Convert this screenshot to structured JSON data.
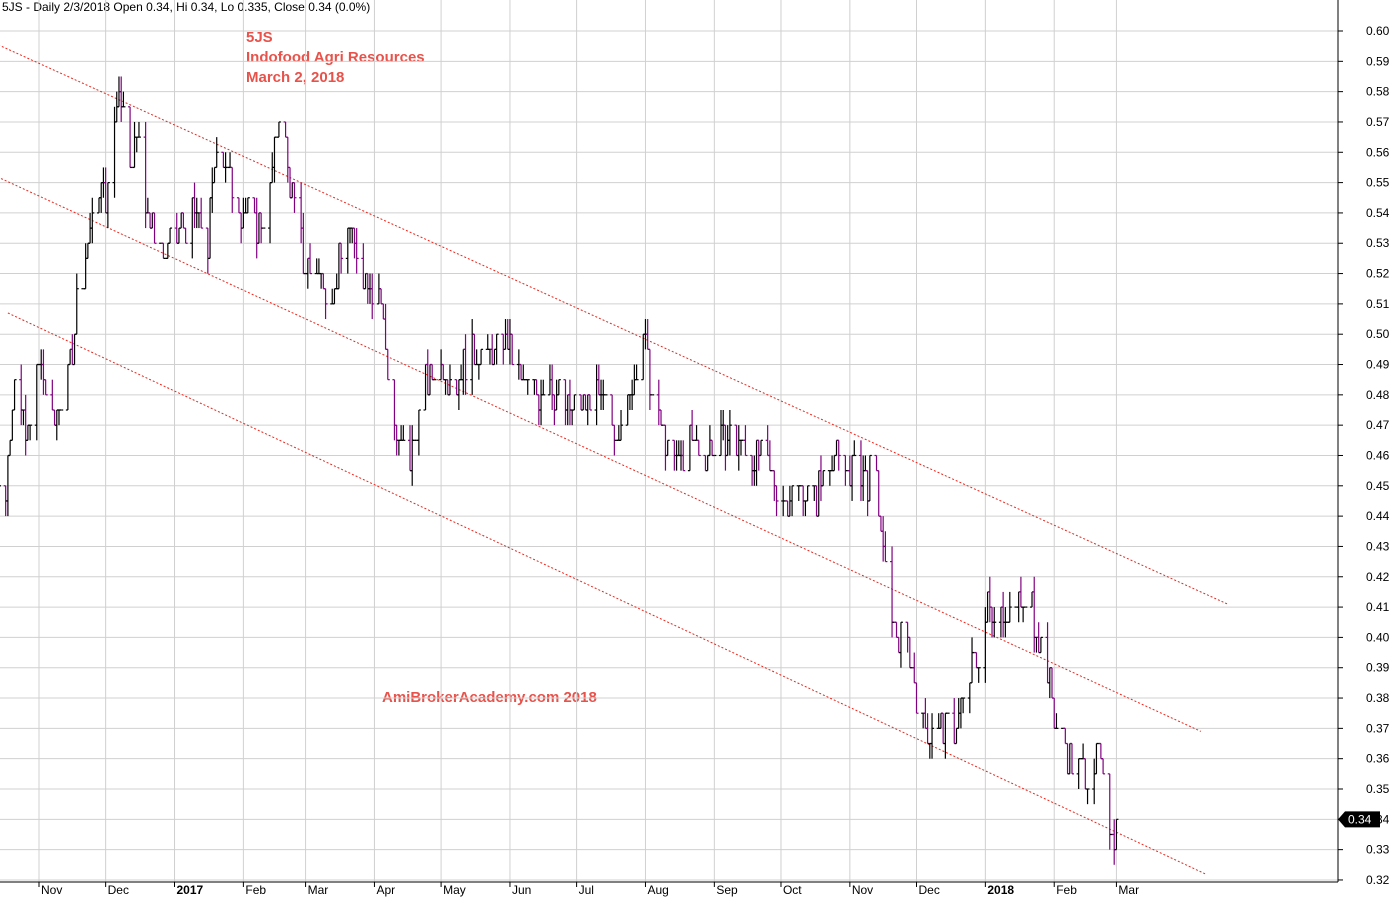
{
  "header": {
    "text": "5JS - Daily 2/3/2018 Open 0.34, Hi 0.34, Lo 0.335, Close 0.34 (0.0%)"
  },
  "title_lines": [
    "5JS",
    "Indofood Agri Resources",
    "March 2, 2018"
  ],
  "watermark": "AmiBrokerAcademy.com  2018",
  "colors": {
    "up": "#000000",
    "down": "#800080",
    "trendline": "#e8261c",
    "grid": "#d0d0d0",
    "text_red": "#e8524a"
  },
  "chart_data": {
    "type": "bar",
    "style": "ohlc",
    "grid": true,
    "ylim": [
      0.32,
      0.6
    ],
    "y_ticks": [
      "0.32",
      "0.33",
      "0.34",
      "0.35",
      "0.36",
      "0.37",
      "0.38",
      "0.39",
      "0.40",
      "0.41",
      "0.42",
      "0.43",
      "0.44",
      "0.45",
      "0.46",
      "0.47",
      "0.48",
      "0.49",
      "0.50",
      "0.51",
      "0.52",
      "0.53",
      "0.54",
      "0.55",
      "0.56",
      "0.57",
      "0.58",
      "0.59",
      "0.60"
    ],
    "x_ticks": [
      {
        "label": "Nov",
        "date": "2016-11-01",
        "bold": false
      },
      {
        "label": "Dec",
        "date": "2016-12-01",
        "bold": false
      },
      {
        "label": "2017",
        "date": "2017-01-01",
        "bold": true
      },
      {
        "label": "Feb",
        "date": "2017-02-01",
        "bold": false
      },
      {
        "label": "Mar",
        "date": "2017-03-01",
        "bold": false
      },
      {
        "label": "Apr",
        "date": "2017-04-01",
        "bold": false
      },
      {
        "label": "May",
        "date": "2017-05-01",
        "bold": false
      },
      {
        "label": "Jun",
        "date": "2017-06-01",
        "bold": false
      },
      {
        "label": "Jul",
        "date": "2017-07-01",
        "bold": false
      },
      {
        "label": "Aug",
        "date": "2017-08-01",
        "bold": false
      },
      {
        "label": "Sep",
        "date": "2017-09-01",
        "bold": false
      },
      {
        "label": "Oct",
        "date": "2017-10-01",
        "bold": false
      },
      {
        "label": "Nov",
        "date": "2017-11-01",
        "bold": false
      },
      {
        "label": "Dec",
        "date": "2017-12-01",
        "bold": false
      },
      {
        "label": "2018",
        "date": "2018-01-01",
        "bold": true
      },
      {
        "label": "Feb",
        "date": "2018-02-01",
        "bold": false
      },
      {
        "label": "Mar",
        "date": "2018-03-01",
        "bold": false
      }
    ],
    "last_value": "0.34",
    "series": [
      {
        "ohlc_anchors": [
          {
            "date": "2016-10-10",
            "close": 0.445
          },
          {
            "date": "2016-10-17",
            "close": 0.45
          },
          {
            "date": "2016-10-21",
            "close": 0.49
          },
          {
            "date": "2016-10-26",
            "close": 0.465
          },
          {
            "date": "2016-11-01",
            "close": 0.49
          },
          {
            "date": "2016-11-07",
            "close": 0.47
          },
          {
            "date": "2016-11-14",
            "close": 0.485
          },
          {
            "date": "2016-11-18",
            "close": 0.51
          },
          {
            "date": "2016-11-22",
            "close": 0.525
          },
          {
            "date": "2016-11-28",
            "close": 0.55
          },
          {
            "date": "2016-12-02",
            "close": 0.545
          },
          {
            "date": "2016-12-07",
            "close": 0.585
          },
          {
            "date": "2016-12-12",
            "close": 0.56
          },
          {
            "date": "2016-12-16",
            "close": 0.565
          },
          {
            "date": "2016-12-21",
            "close": 0.535
          },
          {
            "date": "2016-12-28",
            "close": 0.525
          },
          {
            "date": "2017-01-04",
            "close": 0.535
          },
          {
            "date": "2017-01-10",
            "close": 0.54
          },
          {
            "date": "2017-01-16",
            "close": 0.53
          },
          {
            "date": "2017-01-20",
            "close": 0.565
          },
          {
            "date": "2017-01-26",
            "close": 0.55
          },
          {
            "date": "2017-02-01",
            "close": 0.54
          },
          {
            "date": "2017-02-07",
            "close": 0.535
          },
          {
            "date": "2017-02-13",
            "close": 0.545
          },
          {
            "date": "2017-02-17",
            "close": 0.575
          },
          {
            "date": "2017-02-22",
            "close": 0.55
          },
          {
            "date": "2017-02-28",
            "close": 0.525
          },
          {
            "date": "2017-03-07",
            "close": 0.52
          },
          {
            "date": "2017-03-14",
            "close": 0.515
          },
          {
            "date": "2017-03-20",
            "close": 0.535
          },
          {
            "date": "2017-03-27",
            "close": 0.52
          },
          {
            "date": "2017-04-03",
            "close": 0.515
          },
          {
            "date": "2017-04-07",
            "close": 0.49
          },
          {
            "date": "2017-04-12",
            "close": 0.46
          },
          {
            "date": "2017-04-18",
            "close": 0.46
          },
          {
            "date": "2017-04-24",
            "close": 0.485
          },
          {
            "date": "2017-05-02",
            "close": 0.49
          },
          {
            "date": "2017-05-08",
            "close": 0.485
          },
          {
            "date": "2017-05-15",
            "close": 0.495
          },
          {
            "date": "2017-05-22",
            "close": 0.49
          },
          {
            "date": "2017-05-29",
            "close": 0.5
          },
          {
            "date": "2017-06-05",
            "close": 0.485
          },
          {
            "date": "2017-06-12",
            "close": 0.48
          },
          {
            "date": "2017-06-19",
            "close": 0.485
          },
          {
            "date": "2017-06-26",
            "close": 0.475
          },
          {
            "date": "2017-07-03",
            "close": 0.475
          },
          {
            "date": "2017-07-10",
            "close": 0.48
          },
          {
            "date": "2017-07-17",
            "close": 0.47
          },
          {
            "date": "2017-07-24",
            "close": 0.475
          },
          {
            "date": "2017-07-31",
            "close": 0.5
          },
          {
            "date": "2017-08-04",
            "close": 0.48
          },
          {
            "date": "2017-08-09",
            "close": 0.465
          },
          {
            "date": "2017-08-15",
            "close": 0.455
          },
          {
            "date": "2017-08-21",
            "close": 0.465
          },
          {
            "date": "2017-08-28",
            "close": 0.46
          },
          {
            "date": "2017-09-04",
            "close": 0.465
          },
          {
            "date": "2017-09-11",
            "close": 0.465
          },
          {
            "date": "2017-09-18",
            "close": 0.46
          },
          {
            "date": "2017-09-25",
            "close": 0.455
          },
          {
            "date": "2017-10-02",
            "close": 0.445
          },
          {
            "date": "2017-10-09",
            "close": 0.45
          },
          {
            "date": "2017-10-16",
            "close": 0.445
          },
          {
            "date": "2017-10-23",
            "close": 0.46
          },
          {
            "date": "2017-10-30",
            "close": 0.455
          },
          {
            "date": "2017-11-06",
            "close": 0.455
          },
          {
            "date": "2017-11-13",
            "close": 0.45
          },
          {
            "date": "2017-11-17",
            "close": 0.42
          },
          {
            "date": "2017-11-22",
            "close": 0.4
          },
          {
            "date": "2017-11-28",
            "close": 0.395
          },
          {
            "date": "2017-12-04",
            "close": 0.37
          },
          {
            "date": "2017-12-11",
            "close": 0.37
          },
          {
            "date": "2017-12-18",
            "close": 0.37
          },
          {
            "date": "2017-12-27",
            "close": 0.39
          },
          {
            "date": "2018-01-02",
            "close": 0.41
          },
          {
            "date": "2018-01-08",
            "close": 0.41
          },
          {
            "date": "2018-01-15",
            "close": 0.41
          },
          {
            "date": "2018-01-22",
            "close": 0.41
          },
          {
            "date": "2018-01-29",
            "close": 0.39
          },
          {
            "date": "2018-02-02",
            "close": 0.37
          },
          {
            "date": "2018-02-08",
            "close": 0.36
          },
          {
            "date": "2018-02-14",
            "close": 0.355
          },
          {
            "date": "2018-02-21",
            "close": 0.36
          },
          {
            "date": "2018-02-26",
            "close": 0.34
          },
          {
            "date": "2018-02-28",
            "close": 0.335
          },
          {
            "date": "2018-03-02",
            "close": 0.34
          }
        ]
      }
    ],
    "trendlines": [
      {
        "start": {
          "date": "2016-10-12",
          "y": 0.596
        },
        "end": {
          "date": "2018-04-20",
          "y": 0.411
        }
      },
      {
        "start": {
          "date": "2016-10-10",
          "y": 0.553
        },
        "end": {
          "date": "2018-04-08",
          "y": 0.369
        }
      },
      {
        "start": {
          "date": "2016-10-18",
          "y": 0.507
        },
        "end": {
          "date": "2018-04-10",
          "y": 0.322
        }
      }
    ]
  }
}
